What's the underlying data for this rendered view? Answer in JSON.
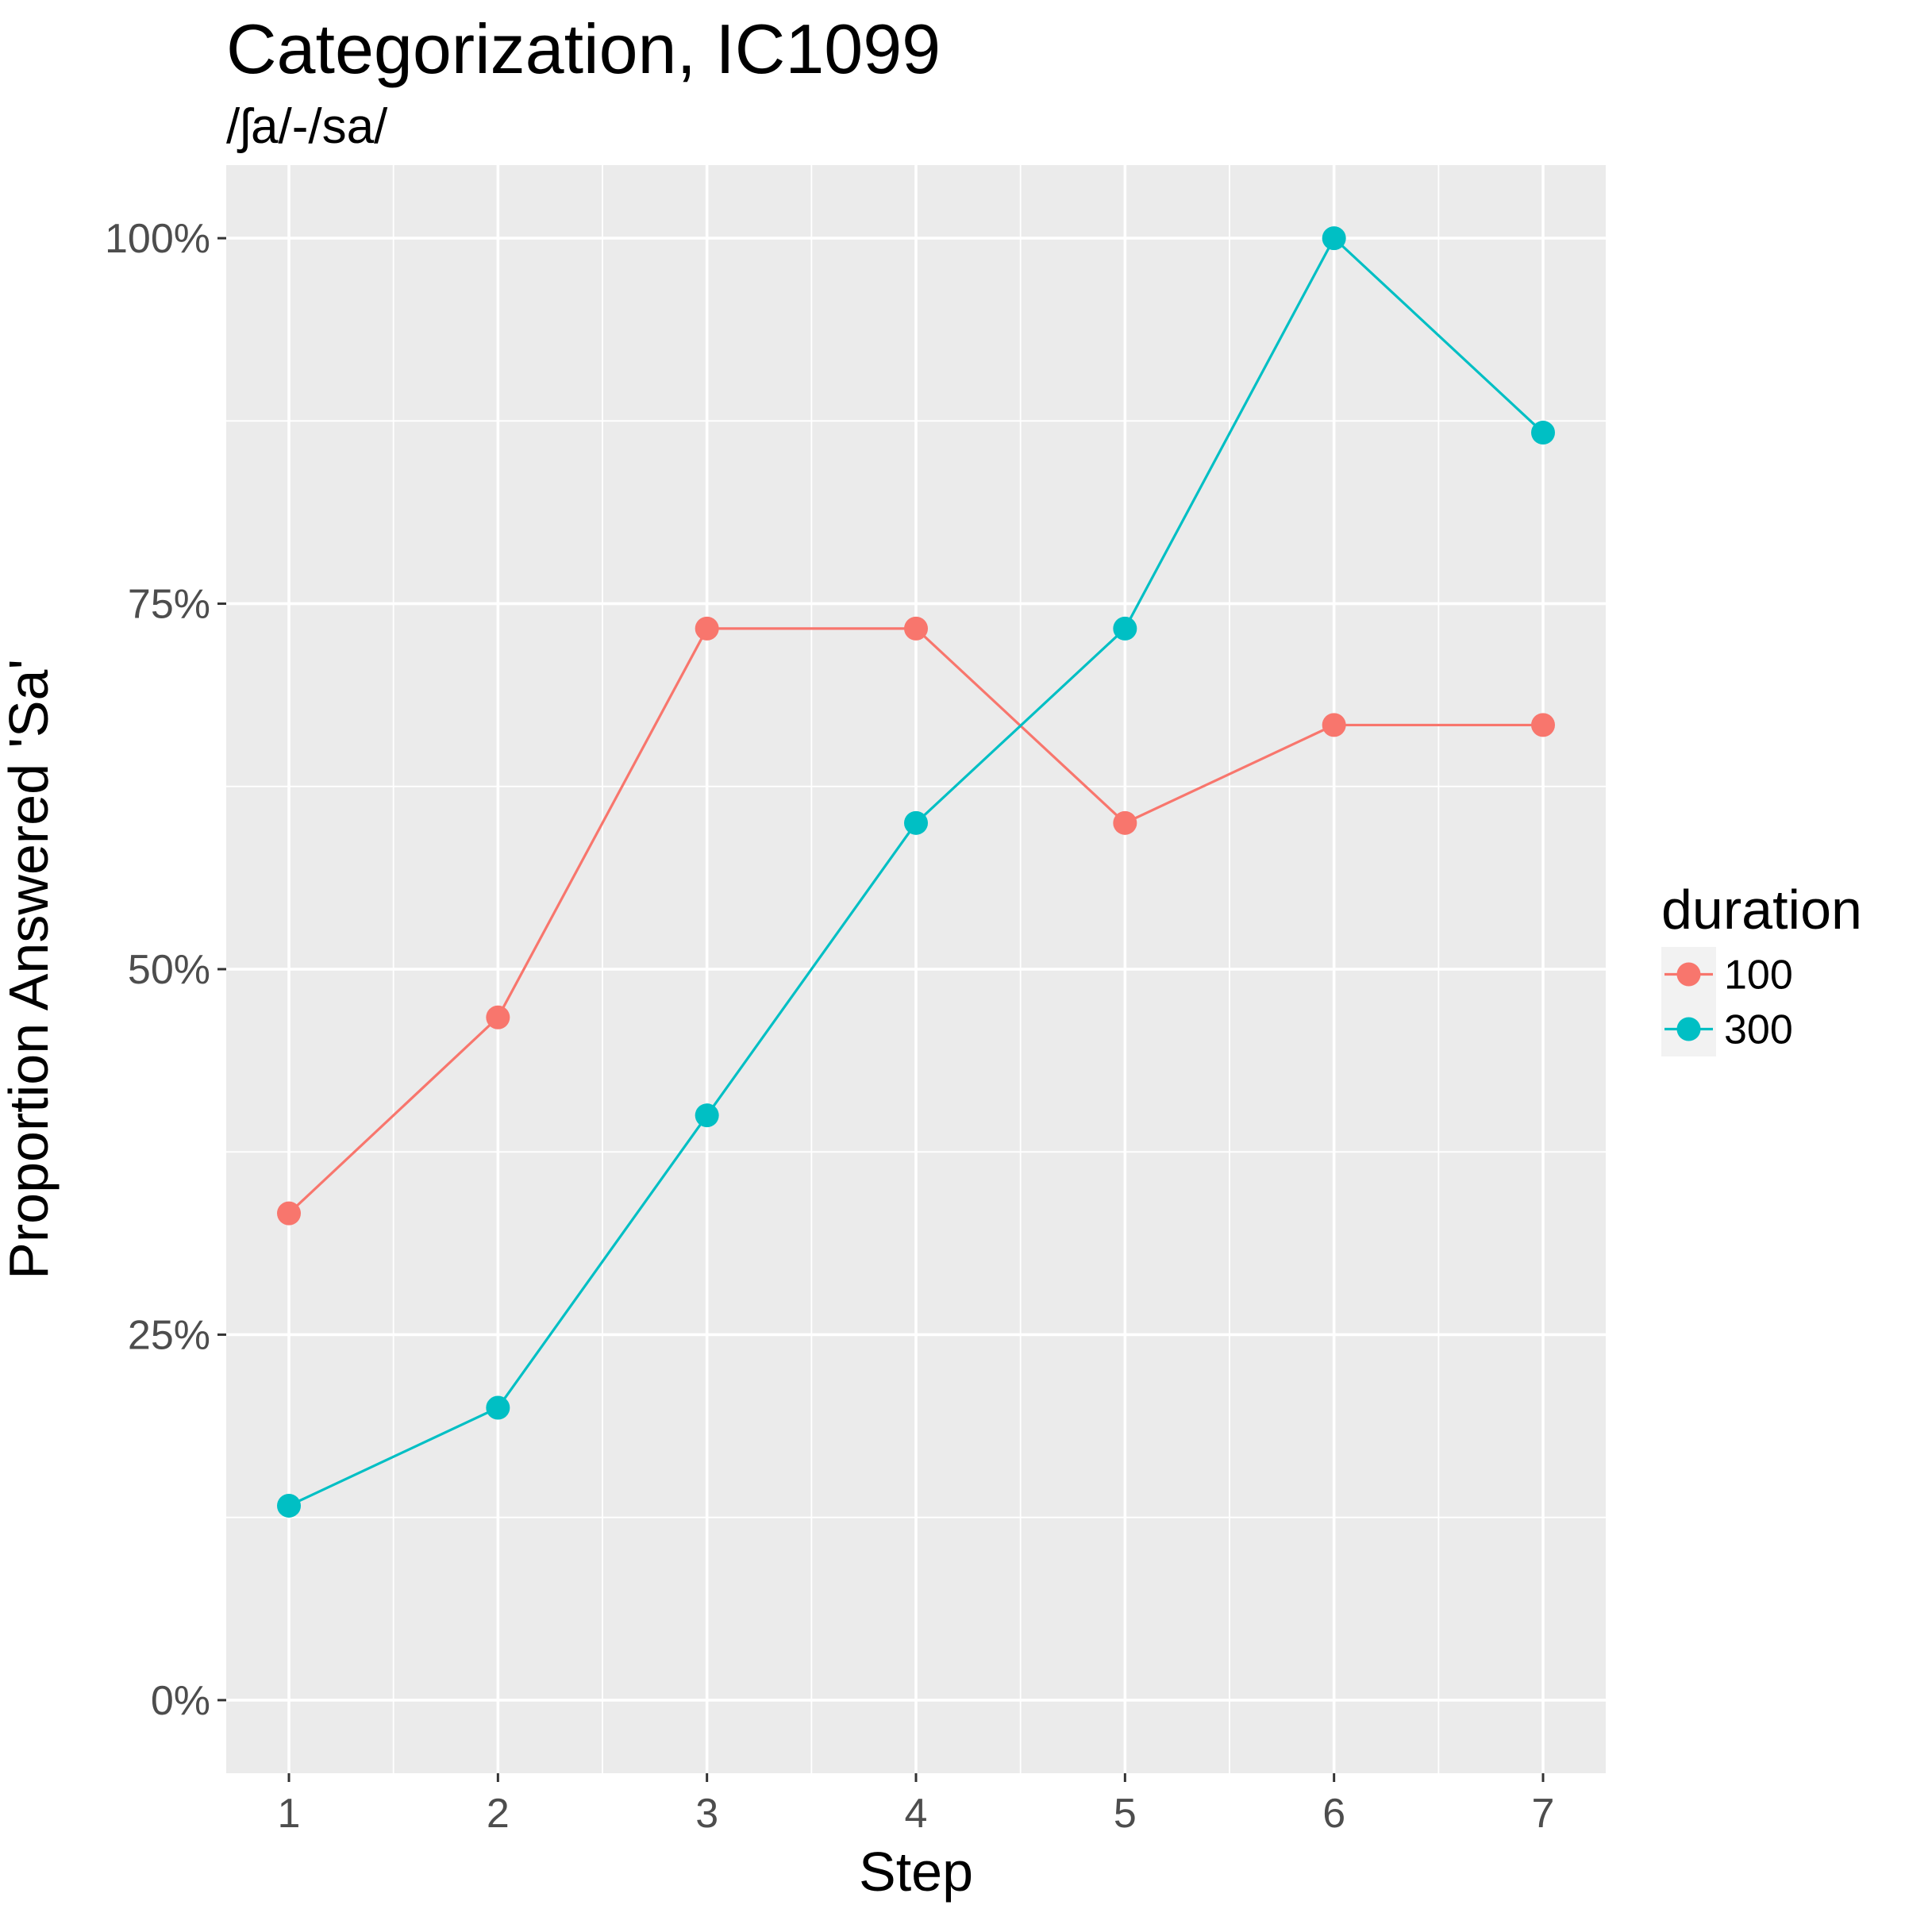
{
  "chart_data": {
    "type": "line",
    "title": "Categorization, IC1099",
    "subtitle": "/ʃa/-/sa/",
    "xlabel": "Step",
    "ylabel": "Proportion Answered 'Sa'",
    "x": [
      1,
      2,
      3,
      4,
      5,
      6,
      7
    ],
    "xlim": [
      0.7,
      7.3
    ],
    "ylim": [
      -0.05,
      1.05
    ],
    "y_ticks": [
      0,
      0.25,
      0.5,
      0.75,
      1
    ],
    "y_tick_labels": [
      "0%",
      "25%",
      "50%",
      "75%",
      "100%"
    ],
    "x_tick_labels": [
      "1",
      "2",
      "3",
      "4",
      "5",
      "6",
      "7"
    ],
    "grid": true,
    "legend": {
      "title": "duration",
      "position": "right"
    },
    "series": [
      {
        "name": "100",
        "color": "#F8766D",
        "values": [
          0.333,
          0.467,
          0.733,
          0.733,
          0.6,
          0.667,
          0.667
        ]
      },
      {
        "name": "300",
        "color": "#00BFC4",
        "values": [
          0.133,
          0.2,
          0.4,
          0.6,
          0.733,
          1.0,
          0.867
        ]
      }
    ]
  }
}
